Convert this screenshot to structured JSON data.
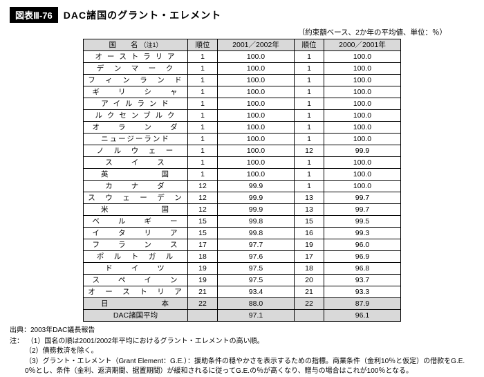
{
  "header": {
    "chapnum": "図表Ⅲ-76",
    "chaptitle": "DAC諸国のグラント・エレメント",
    "subcaption": "（約束額ベース、2か年の平均値、単位：％）"
  },
  "table": {
    "columns": {
      "name": "国　　名",
      "name_note": "（注1）",
      "rank1": "順位",
      "val1": "2001／2002年",
      "rank2": "順位",
      "val2": "2000／2001年"
    },
    "rows": [
      {
        "name": "オ ー ス ト ラ リ ア",
        "r1": "1",
        "v1": "100.0",
        "r2": "1",
        "v2": "100.0"
      },
      {
        "name": "デ　ン　マ　ー　ク",
        "r1": "1",
        "v1": "100.0",
        "r2": "1",
        "v2": "100.0"
      },
      {
        "name": "フ　ィ　ン　ラ　ン　ド",
        "r1": "1",
        "v1": "100.0",
        "r2": "1",
        "v2": "100.0"
      },
      {
        "name": "ギ　　リ　　シ　　ャ",
        "r1": "1",
        "v1": "100.0",
        "r2": "1",
        "v2": "100.0"
      },
      {
        "name": "ア イ ル ラ ン ド",
        "r1": "1",
        "v1": "100.0",
        "r2": "1",
        "v2": "100.0"
      },
      {
        "name": "ル ク セ ン ブ ル ク",
        "r1": "1",
        "v1": "100.0",
        "r2": "1",
        "v2": "100.0"
      },
      {
        "name": "オ　　ラ　　ン　　ダ",
        "r1": "1",
        "v1": "100.0",
        "r2": "1",
        "v2": "100.0"
      },
      {
        "name": "ニュージーランド",
        "r1": "1",
        "v1": "100.0",
        "r2": "1",
        "v2": "100.0"
      },
      {
        "name": "ノ　ル　ウ　ェ　ー",
        "r1": "1",
        "v1": "100.0",
        "r2": "12",
        "v2": "99.9"
      },
      {
        "name": "ス　　イ　　ス",
        "r1": "1",
        "v1": "100.0",
        "r2": "1",
        "v2": "100.0"
      },
      {
        "name": "英　　　　　　国",
        "r1": "1",
        "v1": "100.0",
        "r2": "1",
        "v2": "100.0"
      },
      {
        "name": "カ　　ナ　　ダ",
        "r1": "12",
        "v1": "99.9",
        "r2": "1",
        "v2": "100.0"
      },
      {
        "name": "ス　ウ　ェ　ー　デ　ン",
        "r1": "12",
        "v1": "99.9",
        "r2": "13",
        "v2": "99.7"
      },
      {
        "name": "米　　　　　　国",
        "r1": "12",
        "v1": "99.9",
        "r2": "13",
        "v2": "99.7"
      },
      {
        "name": "ベ　　ル　　ギ　　ー",
        "r1": "15",
        "v1": "99.8",
        "r2": "15",
        "v2": "99.5"
      },
      {
        "name": "イ　　タ　　リ　　ア",
        "r1": "15",
        "v1": "99.8",
        "r2": "16",
        "v2": "99.3"
      },
      {
        "name": "フ　　ラ　　ン　　ス",
        "r1": "17",
        "v1": "97.7",
        "r2": "19",
        "v2": "96.0"
      },
      {
        "name": "ポ　ル　ト　ガ　ル",
        "r1": "18",
        "v1": "97.6",
        "r2": "17",
        "v2": "96.9"
      },
      {
        "name": "ド　　イ　　ツ",
        "r1": "19",
        "v1": "97.5",
        "r2": "18",
        "v2": "96.8"
      },
      {
        "name": "ス　　ペ　　イ　　ン",
        "r1": "19",
        "v1": "97.5",
        "r2": "20",
        "v2": "93.7"
      },
      {
        "name": "オ　ー　ス　ト　リ　ア",
        "r1": "21",
        "v1": "93.4",
        "r2": "21",
        "v2": "93.3"
      },
      {
        "name": "日　　　　　　本",
        "r1": "22",
        "v1": "88.0",
        "r2": "22",
        "v2": "87.9",
        "hl": true
      }
    ],
    "avg": {
      "name": "DAC諸国平均",
      "v1": "97.1",
      "v2": "96.1"
    }
  },
  "foot": {
    "source": "出典：2003年DAC議長報告",
    "notes_label": "注：",
    "notes": [
      "国名の順は2001/2002年平均におけるグラント・エレメントの高い順。",
      "債務救済を除く。",
      "グラント・エレメント（Grant Element：G.E.）：援助条件の穏やかさを表示するための指標。商業条件（金利10％と仮定）の借款をG.E. 0％とし、条件（金利、返済期間、据置期間）が緩和されるに従ってG.E.の％が高くなり、贈与の場合はこれが100％となる。"
    ]
  }
}
